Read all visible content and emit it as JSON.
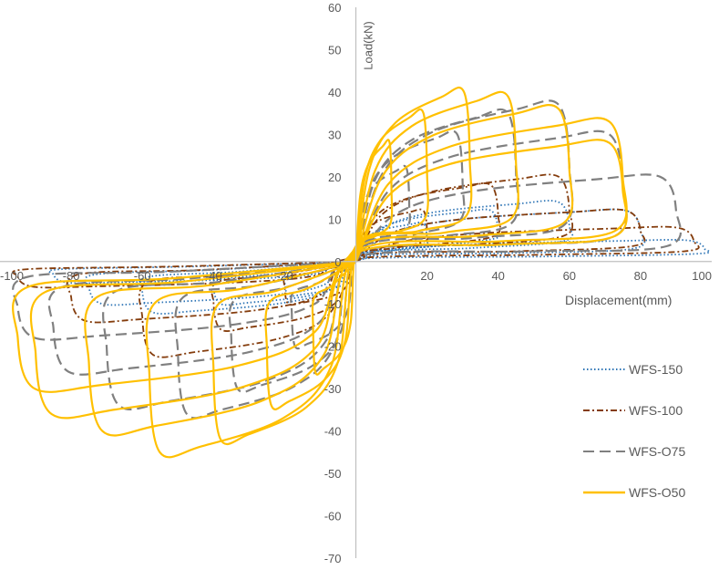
{
  "chart_data": {
    "type": "line",
    "title": "",
    "xlabel": "Displacement(mm)",
    "ylabel": "Load(kN)",
    "xlim": [
      -100,
      100
    ],
    "ylim": [
      -70,
      60
    ],
    "x_ticks": [
      -100,
      -80,
      -60,
      -40,
      -20,
      0,
      20,
      40,
      60,
      80,
      100
    ],
    "x_tick_labels": [
      "-100",
      "-80",
      "-60",
      "-40",
      "-20",
      "0",
      "20",
      "40",
      "60",
      "80",
      "100"
    ],
    "y_ticks": [
      60,
      50,
      40,
      30,
      20,
      10,
      0,
      -10,
      -20,
      -30,
      -40,
      -50,
      -60,
      -70
    ],
    "y_tick_labels": [
      "60",
      "50",
      "40",
      "30",
      "20",
      "10",
      "0",
      "-10",
      "-20",
      "-30",
      "-40",
      "-50",
      "-60",
      "-70"
    ],
    "grid": false,
    "legend_position": "right",
    "series": [
      {
        "name": "WFS-150",
        "color": "#2e75b6",
        "dash": "dotted",
        "cycles": [
          {
            "dpos": 20,
            "dneg": -20,
            "ppos": 9,
            "pneg": -8,
            "rpos": 7,
            "rneg": -6
          },
          {
            "dpos": 40,
            "dneg": -40,
            "ppos": 12,
            "pneg": -10,
            "rpos": 9,
            "rneg": -7
          },
          {
            "dpos": 60,
            "dneg": -60,
            "ppos": 14,
            "pneg": -12,
            "rpos": 8,
            "rneg": -6
          },
          {
            "dpos": 80,
            "dneg": -75,
            "ppos": 12,
            "pneg": -10,
            "rpos": 5,
            "rneg": -5
          },
          {
            "dpos": 98,
            "dneg": -85,
            "ppos": 5,
            "pneg": -5,
            "rpos": 3,
            "rneg": -3
          }
        ]
      },
      {
        "name": "WFS-100",
        "color": "#843c0c",
        "dash": "dashdot",
        "cycles": [
          {
            "dpos": 20,
            "dneg": -20,
            "ppos": 12,
            "pneg": -10,
            "rpos": 8,
            "rneg": -6
          },
          {
            "dpos": 40,
            "dneg": -40,
            "ppos": 18,
            "pneg": -16,
            "rpos": 10,
            "rneg": -8
          },
          {
            "dpos": 60,
            "dneg": -60,
            "ppos": 20,
            "pneg": -22,
            "rpos": 10,
            "rneg": -8
          },
          {
            "dpos": 80,
            "dneg": -80,
            "ppos": 12,
            "pneg": -14,
            "rpos": 6,
            "rneg": -5
          },
          {
            "dpos": 95,
            "dneg": -95,
            "ppos": 8,
            "pneg": -6,
            "rpos": 4,
            "rneg": -3
          }
        ]
      },
      {
        "name": "WFS-O75",
        "color": "#808080",
        "dash": "longdash",
        "cycles": [
          {
            "dpos": 15,
            "dneg": -18,
            "ppos": 22,
            "pneg": -20,
            "rpos": 14,
            "rneg": -12
          },
          {
            "dpos": 30,
            "dneg": -35,
            "ppos": 30,
            "pneg": -30,
            "rpos": 16,
            "rneg": -15
          },
          {
            "dpos": 45,
            "dneg": -50,
            "ppos": 35,
            "pneg": -36,
            "rpos": 15,
            "rneg": -14
          },
          {
            "dpos": 60,
            "dneg": -70,
            "ppos": 37,
            "pneg": -34,
            "rpos": 14,
            "rneg": -12
          },
          {
            "dpos": 75,
            "dneg": -85,
            "ppos": 30,
            "pneg": -26,
            "rpos": 10,
            "rneg": -10
          },
          {
            "dpos": 90,
            "dneg": -95,
            "ppos": 20,
            "pneg": -18,
            "rpos": 6,
            "rneg": -6
          }
        ]
      },
      {
        "name": "WFS-O50",
        "color": "#ffc000",
        "dash": "solid",
        "cycles": [
          {
            "dpos": 10,
            "dneg": -12,
            "ppos": 28,
            "pneg": -26,
            "rpos": 15,
            "rneg": -14
          },
          {
            "dpos": 20,
            "dneg": -25,
            "ppos": 35,
            "pneg": -34,
            "rpos": 17,
            "rneg": -16
          },
          {
            "dpos": 32,
            "dneg": -40,
            "ppos": 40,
            "pneg": -42,
            "rpos": 18,
            "rneg": -17
          },
          {
            "dpos": 45,
            "dneg": -58,
            "ppos": 39,
            "pneg": -45,
            "rpos": 17,
            "rneg": -16
          },
          {
            "dpos": 60,
            "dneg": -75,
            "ppos": 36,
            "pneg": -40,
            "rpos": 15,
            "rneg": -14
          },
          {
            "dpos": 75,
            "dneg": -90,
            "ppos": 33,
            "pneg": -36,
            "rpos": 12,
            "rneg": -12
          },
          {
            "dpos": 75,
            "dneg": -95,
            "ppos": 28,
            "pneg": -30,
            "rpos": 10,
            "rneg": -10
          }
        ]
      }
    ]
  }
}
